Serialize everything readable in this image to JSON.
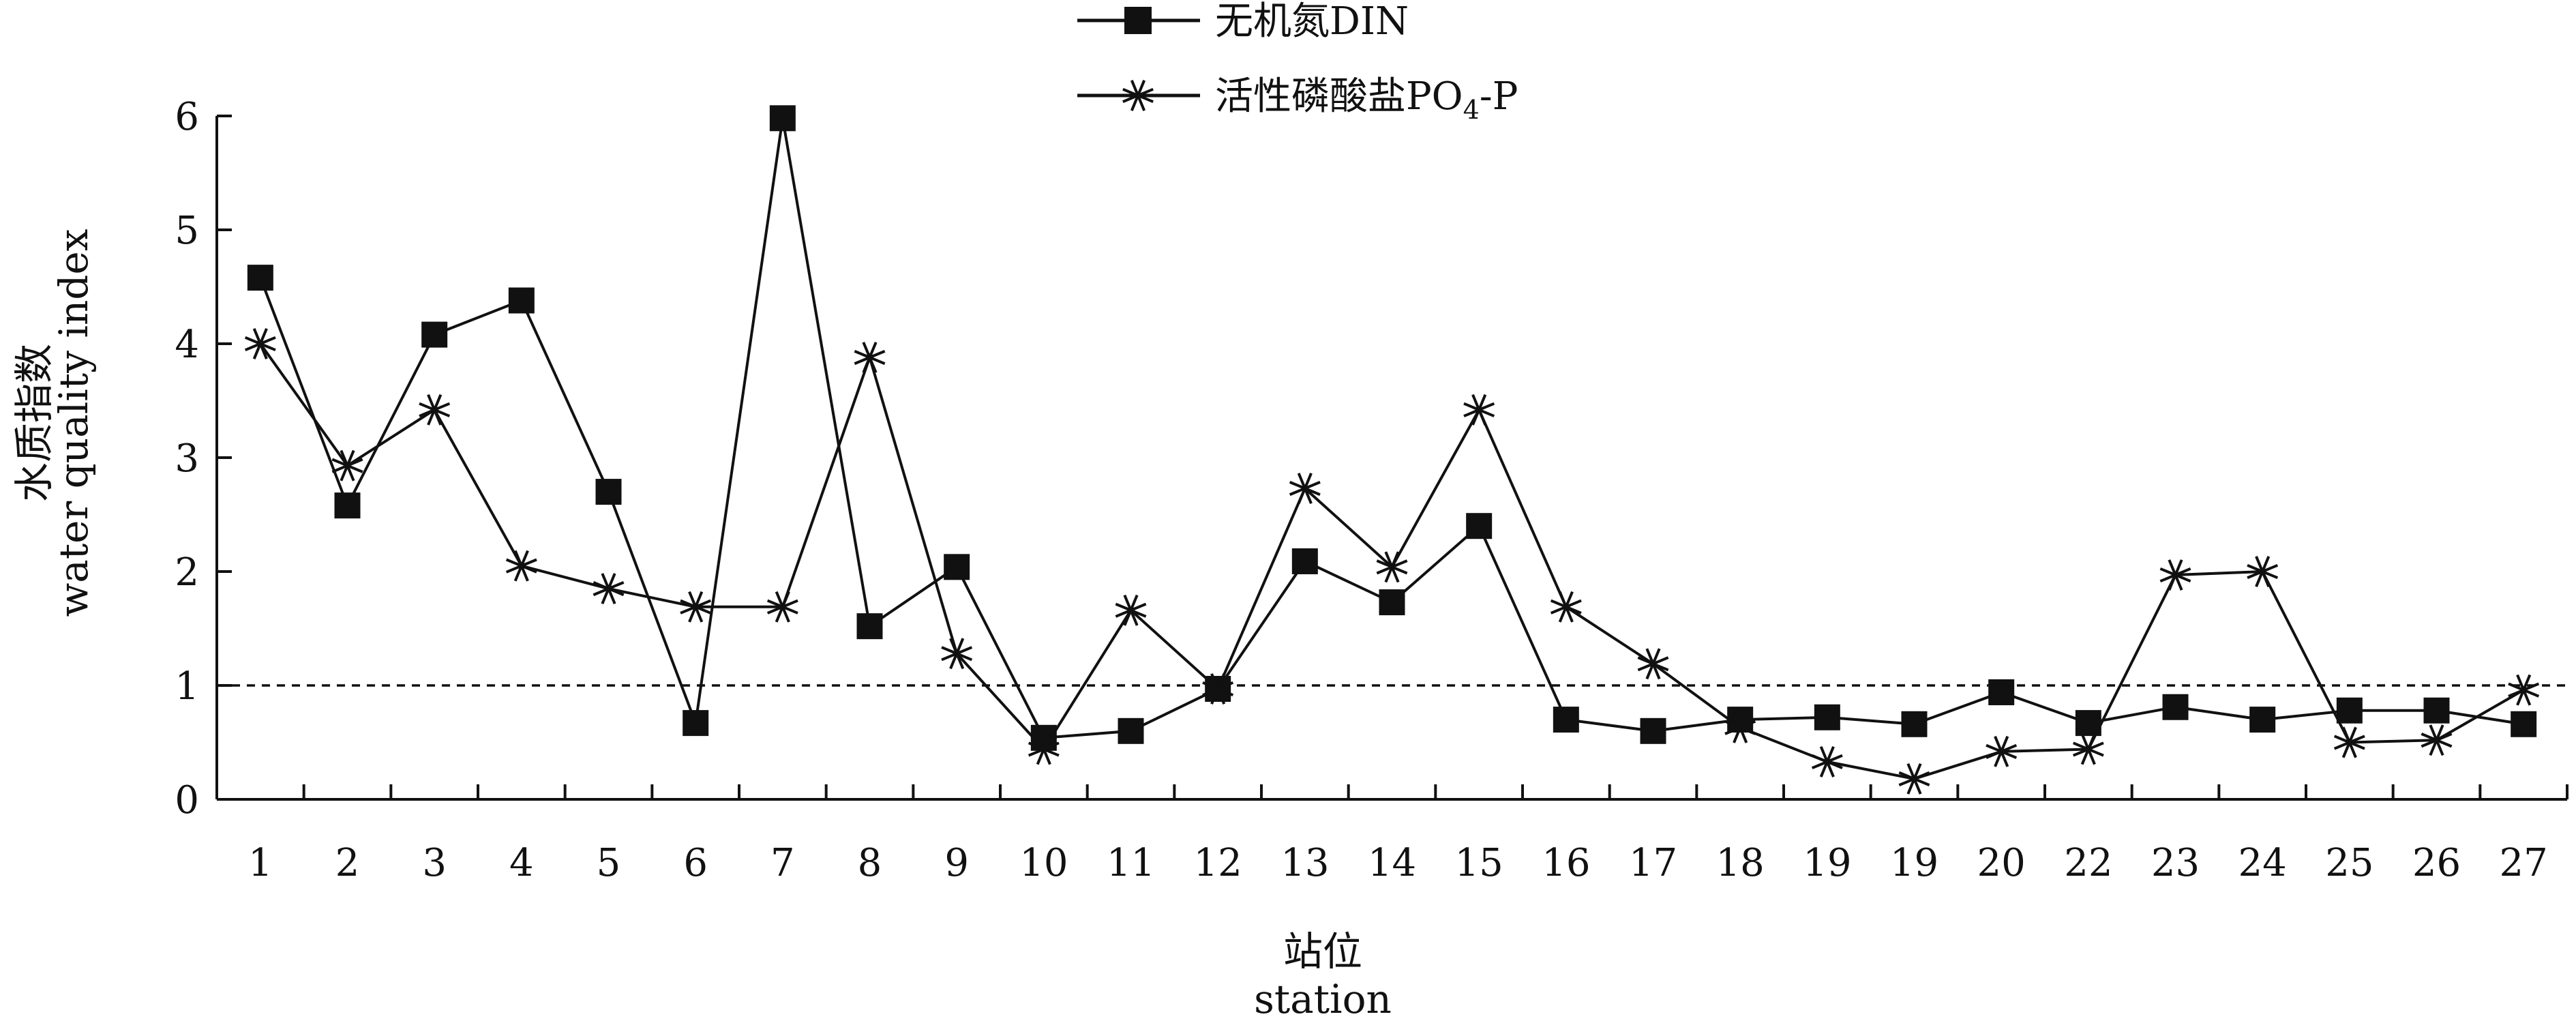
{
  "chart_data": {
    "type": "line",
    "categories": [
      "1",
      "2",
      "3",
      "4",
      "5",
      "6",
      "7",
      "8",
      "9",
      "10",
      "11",
      "12",
      "13",
      "14",
      "15",
      "16",
      "17",
      "18",
      "19",
      "19",
      "20",
      "22",
      "23",
      "24",
      "25",
      "26",
      "27"
    ],
    "series": [
      {
        "name": "无机氮DIN",
        "marker": "square",
        "values": [
          4.58,
          2.58,
          4.08,
          4.38,
          2.7,
          0.67,
          5.98,
          1.52,
          2.04,
          0.54,
          0.6,
          0.97,
          2.09,
          1.73,
          2.4,
          0.7,
          0.6,
          0.7,
          0.72,
          0.66,
          0.94,
          0.67,
          0.81,
          0.7,
          0.78,
          0.78,
          0.66
        ]
      },
      {
        "name": "活性磷酸盐PO4-P",
        "marker": "asterisk",
        "values": [
          4.0,
          2.93,
          3.42,
          2.05,
          1.85,
          1.69,
          1.69,
          3.88,
          1.28,
          0.44,
          1.66,
          0.97,
          2.73,
          2.04,
          3.42,
          1.69,
          1.19,
          0.63,
          0.33,
          0.18,
          0.42,
          0.44,
          1.97,
          2.0,
          0.5,
          0.52,
          0.96
        ]
      }
    ],
    "legend": {
      "din": "无机氮DIN",
      "po4_prefix": "活性磷酸盐PO",
      "po4_sub": "4",
      "po4_suffix": "-P",
      "placement": "top-center"
    },
    "xlabel_cn": "站位",
    "xlabel_en": "station",
    "ylabel_cn": "水质指数",
    "ylabel_en": "water quality index",
    "ylim": [
      0,
      6
    ],
    "yticks": [
      "0",
      "1",
      "2",
      "3",
      "4",
      "5",
      "6"
    ],
    "reference_line": {
      "y": 1,
      "style": "dashed"
    },
    "grid": false
  }
}
